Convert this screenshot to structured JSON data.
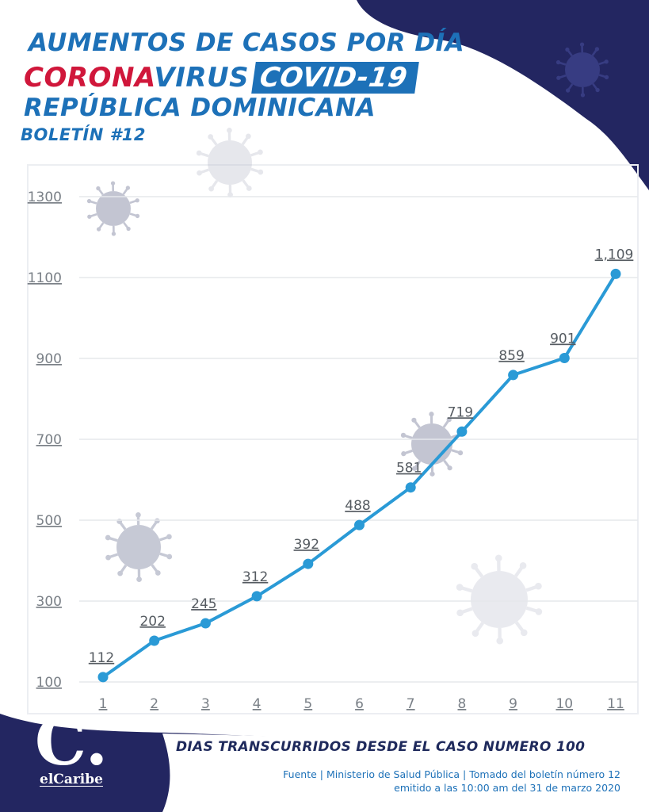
{
  "header": {
    "line1": "AUMENTOS DE CASOS POR DÍA",
    "line2_a": "CORONA",
    "line2_b": "VIRUS",
    "line2_c": "COVID-19",
    "line3": "REPÚBLICA DOMINICANA",
    "line4": "BOLETÍN #12"
  },
  "colors": {
    "navy": "#232661",
    "blue": "#1d71b8",
    "red": "#d0173b",
    "line": "#2a9ad6",
    "virus_icon": "#b9bccb"
  },
  "chart_data": {
    "type": "line",
    "title": "",
    "xlabel": "DIAS TRANSCURRIDOS DESDE EL CASO NUMERO 100",
    "ylabel": "",
    "x": [
      1,
      2,
      3,
      4,
      5,
      6,
      7,
      8,
      9,
      10,
      11
    ],
    "x_tick_labels": [
      "1",
      "2",
      "3",
      "4",
      "5",
      "6",
      "7",
      "8",
      "9",
      "10",
      "11"
    ],
    "ylim": [
      100,
      1300
    ],
    "y_ticks": [
      100,
      300,
      500,
      700,
      900,
      1100,
      1300
    ],
    "y_tick_labels": [
      "100",
      "300",
      "500",
      "700",
      "900",
      "1100",
      "1300"
    ],
    "grid": true,
    "series": [
      {
        "values": [
          112,
          202,
          245,
          312,
          392,
          488,
          581,
          719,
          859,
          901,
          1109
        ],
        "data_labels": [
          "112",
          "202",
          "245",
          "312",
          "392",
          "488",
          "581",
          "719",
          "859",
          "901",
          "1,109"
        ]
      }
    ]
  },
  "footer": {
    "source_line1": "Fuente | Ministerio de Salud Pública | Tomado del boletín número 12",
    "source_line2": "emitido a las 10:00 am del 31 de marzo 2020"
  },
  "logo": {
    "mark": "C.",
    "name": "elCaribe"
  },
  "decorations": {
    "icon": "coronavirus-icon"
  }
}
